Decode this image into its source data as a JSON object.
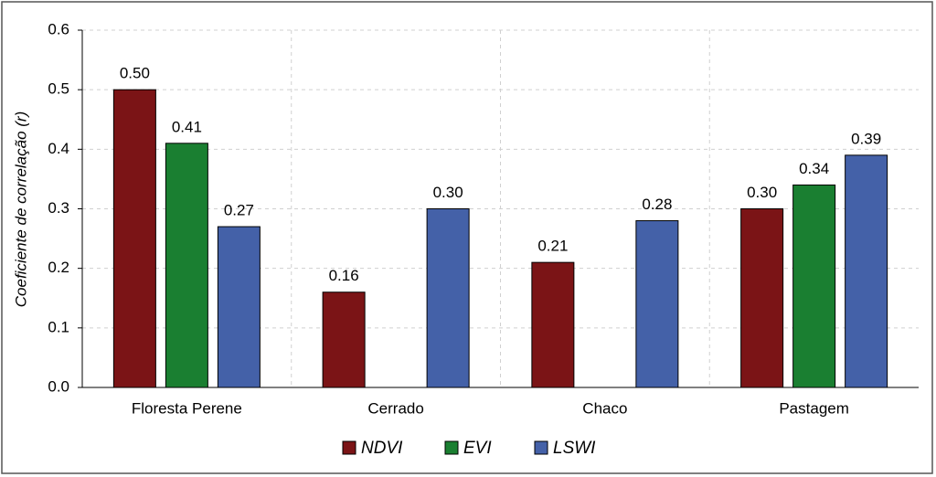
{
  "chart_data": {
    "type": "bar",
    "y_label": "Coeficiente de correlação (r)",
    "categories": [
      "Floresta Perene",
      "Cerrado",
      "Chaco",
      "Pastagem"
    ],
    "series": [
      {
        "name": "NDVI",
        "color": "#7b1416",
        "values": [
          0.5,
          0.16,
          0.21,
          0.3
        ],
        "value_labels": [
          "0.50",
          "0.16",
          "0.21",
          "0.30"
        ]
      },
      {
        "name": "EVI",
        "color": "#1a7f31",
        "values": [
          0.41,
          null,
          null,
          0.34
        ],
        "value_labels": [
          "0.41",
          null,
          null,
          "0.34"
        ]
      },
      {
        "name": "LSWI",
        "color": "#4461a8",
        "values": [
          0.27,
          0.3,
          0.28,
          0.39
        ],
        "value_labels": [
          "0.27",
          "0.30",
          "0.28",
          "0.39"
        ]
      }
    ],
    "ylim": [
      0,
      0.6
    ],
    "yticks": [
      {
        "value": 0,
        "label": "0.0"
      },
      0.1,
      0.2,
      0.3,
      0.4,
      0.5,
      0.6
    ],
    "grid": true,
    "legend": "bottom"
  }
}
